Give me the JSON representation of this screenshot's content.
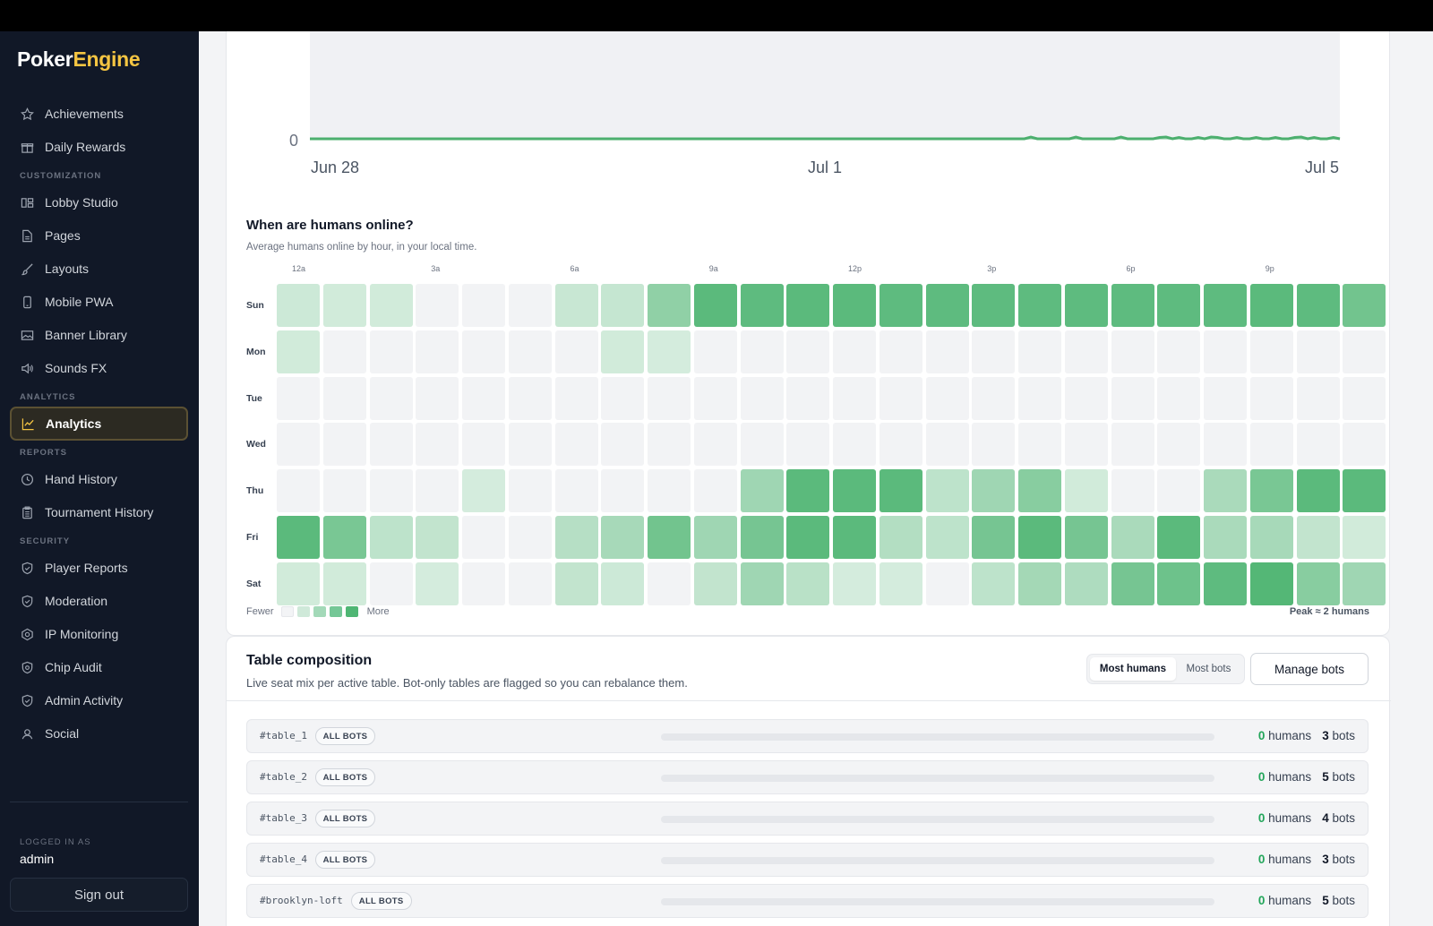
{
  "app": {
    "logo_part1": "Poker",
    "logo_part2": "Engine",
    "accent": "#f5c542"
  },
  "sidebar": {
    "items_top": [
      {
        "label": "Achievements",
        "icon": "star-icon"
      },
      {
        "label": "Daily Rewards",
        "icon": "gift-icon"
      }
    ],
    "sections": [
      {
        "label": "CUSTOMIZATION",
        "items": [
          {
            "label": "Lobby Studio",
            "icon": "layout-icon"
          },
          {
            "label": "Pages",
            "icon": "file-icon"
          },
          {
            "label": "Layouts",
            "icon": "brush-icon"
          },
          {
            "label": "Mobile PWA",
            "icon": "mobile-icon"
          },
          {
            "label": "Banner Library",
            "icon": "image-icon"
          },
          {
            "label": "Sounds FX",
            "icon": "speaker-icon"
          }
        ]
      },
      {
        "label": "ANALYTICS",
        "items": [
          {
            "label": "Analytics",
            "icon": "trend-icon",
            "active": true
          }
        ]
      },
      {
        "label": "REPORTS",
        "items": [
          {
            "label": "Hand History",
            "icon": "clock-icon"
          },
          {
            "label": "Tournament History",
            "icon": "clipboard-icon"
          }
        ]
      },
      {
        "label": "SECURITY",
        "items": [
          {
            "label": "Player Reports",
            "icon": "shield-icon"
          },
          {
            "label": "Moderation",
            "icon": "shield-icon"
          },
          {
            "label": "IP Monitoring",
            "icon": "radar-icon"
          },
          {
            "label": "Chip Audit",
            "icon": "shield-check-icon"
          },
          {
            "label": "Admin Activity",
            "icon": "shield-icon"
          },
          {
            "label": "Social",
            "icon": "user-icon"
          }
        ]
      }
    ],
    "logged_in_label": "LOGGED IN AS",
    "user": "admin",
    "sign_out": "Sign out"
  },
  "line_chart": {
    "y_tick": "0",
    "x_ticks": [
      "Jun 28",
      "Jul 1",
      "Jul 5"
    ],
    "line_color": "#4caf6e"
  },
  "heatmap": {
    "title": "When are humans online?",
    "subtitle": "Average humans online by hour, in your local time.",
    "hour_labels": [
      "12a",
      "",
      "",
      "3a",
      "",
      "",
      "6a",
      "",
      "",
      "9a",
      "",
      "",
      "12p",
      "",
      "",
      "3p",
      "",
      "",
      "6p",
      "",
      "",
      "9p",
      "",
      ""
    ],
    "days": [
      "Sun",
      "Mon",
      "Tue",
      "Wed",
      "Thu",
      "Fri",
      "Sat"
    ],
    "values": [
      [
        0.15,
        0.12,
        0.12,
        0.02,
        0.02,
        0.02,
        0.18,
        0.2,
        0.55,
        0.9,
        0.88,
        0.9,
        0.9,
        0.88,
        0.88,
        0.88,
        0.88,
        0.88,
        0.88,
        0.88,
        0.88,
        0.9,
        0.88,
        0.75
      ],
      [
        0.12,
        0.02,
        0.02,
        0.02,
        0.02,
        0.02,
        0.02,
        0.12,
        0.1,
        0.02,
        0.02,
        0.02,
        0.02,
        0.02,
        0.02,
        0.02,
        0.02,
        0.02,
        0.02,
        0.02,
        0.02,
        0.02,
        0.02,
        0.02
      ],
      [
        0.02,
        0.02,
        0.02,
        0.02,
        0.02,
        0.02,
        0.02,
        0.02,
        0.02,
        0.02,
        0.02,
        0.02,
        0.02,
        0.02,
        0.02,
        0.02,
        0.02,
        0.02,
        0.02,
        0.02,
        0.02,
        0.02,
        0.02,
        0.02
      ],
      [
        0.02,
        0.02,
        0.02,
        0.02,
        0.02,
        0.02,
        0.02,
        0.02,
        0.02,
        0.02,
        0.02,
        0.02,
        0.02,
        0.02,
        0.02,
        0.02,
        0.02,
        0.02,
        0.02,
        0.02,
        0.02,
        0.02,
        0.02,
        0.02
      ],
      [
        0.02,
        0.02,
        0.02,
        0.02,
        0.1,
        0.02,
        0.02,
        0.02,
        0.02,
        0.02,
        0.45,
        0.9,
        0.9,
        0.9,
        0.25,
        0.45,
        0.6,
        0.12,
        0.02,
        0.02,
        0.38,
        0.7,
        0.9,
        0.9
      ],
      [
        0.9,
        0.7,
        0.25,
        0.22,
        0.02,
        0.02,
        0.3,
        0.4,
        0.75,
        0.45,
        0.72,
        0.9,
        0.9,
        0.32,
        0.25,
        0.72,
        0.9,
        0.72,
        0.38,
        0.9,
        0.38,
        0.4,
        0.22,
        0.12
      ],
      [
        0.12,
        0.12,
        0.02,
        0.1,
        0.02,
        0.02,
        0.22,
        0.15,
        0.02,
        0.22,
        0.45,
        0.28,
        0.1,
        0.1,
        0.02,
        0.25,
        0.42,
        0.35,
        0.72,
        0.78,
        0.88,
        0.95,
        0.6,
        0.45
      ]
    ],
    "legend_fewer": "Fewer",
    "legend_more": "More",
    "legend_colors": [
      "#f3f4f6",
      "#cfe9d9",
      "#a3d9b8",
      "#74c796",
      "#4fb674"
    ],
    "peak_label": "Peak ≈ 2 humans"
  },
  "composition": {
    "title": "Table composition",
    "subtitle": "Live seat mix per active table. Bot-only tables are flagged so you can rebalance them.",
    "segment_on": "Most humans",
    "segment_off": "Most bots",
    "manage_button": "Manage bots",
    "badge_text": "ALL BOTS",
    "humans_word": "humans",
    "bots_word": "bots",
    "rows": [
      {
        "name": "#table_1",
        "humans": "0",
        "bots": "3",
        "human_share": 0
      },
      {
        "name": "#table_2",
        "humans": "0",
        "bots": "5",
        "human_share": 0
      },
      {
        "name": "#table_3",
        "humans": "0",
        "bots": "4",
        "human_share": 0
      },
      {
        "name": "#table_4",
        "humans": "0",
        "bots": "3",
        "human_share": 0
      },
      {
        "name": "#brooklyn-loft",
        "humans": "0",
        "bots": "5",
        "human_share": 0
      }
    ]
  }
}
